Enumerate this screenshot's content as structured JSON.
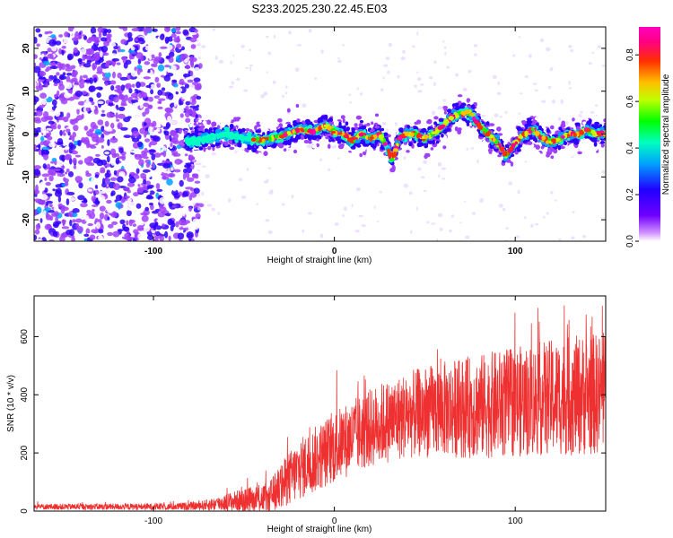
{
  "title": "S233.2025.230.22.45.E03",
  "chart_data": [
    {
      "type": "heatmap",
      "xlabel": "Height of straight line (km)",
      "ylabel": "Frequency (Hz)",
      "xlim": [
        -166,
        150
      ],
      "ylim": [
        -25,
        25
      ],
      "x_ticks": [
        -100,
        0,
        100
      ],
      "y_ticks": [
        -20,
        -10,
        0,
        10,
        20
      ],
      "colorbar": {
        "label": "Normalized spectral amplitude",
        "range": [
          0.0,
          0.92
        ],
        "ticks": [
          0.0,
          0.2,
          0.4,
          0.6,
          0.8
        ],
        "colors": [
          "#ffffff",
          "#a040ff",
          "#3000ff",
          "#00a0ff",
          "#00ffc0",
          "#00ff00",
          "#c0ff00",
          "#ffc000",
          "#ff3000",
          "#ff0080",
          "#ff00c0"
        ]
      },
      "ridge": {
        "x": [
          -80,
          -70,
          -60,
          -50,
          -40,
          -30,
          -20,
          -12,
          -5,
          0,
          5,
          10,
          15,
          20,
          25,
          28,
          32,
          36,
          40,
          45,
          50,
          55,
          60,
          65,
          70,
          75,
          80,
          85,
          90,
          95,
          100,
          105,
          110,
          115,
          120,
          125,
          130,
          135,
          140,
          145,
          150
        ],
        "y": [
          -1.5,
          -1,
          0,
          -1,
          -1.5,
          -0.5,
          1,
          0.5,
          2,
          0.5,
          0,
          -1.5,
          0,
          -1,
          0,
          -2,
          -6,
          -1,
          0,
          0,
          -1,
          0,
          2,
          4,
          5,
          5,
          2,
          0,
          -2,
          -5,
          -2,
          0,
          1,
          -1,
          -2,
          -1,
          0,
          0,
          1,
          0,
          0
        ],
        "peak_amplitude": 0.9
      }
    },
    {
      "type": "line",
      "xlabel": "Height of straight line (km)",
      "ylabel": "SNR (10 * v/v)",
      "xlim": [
        -166,
        150
      ],
      "ylim": [
        0,
        740
      ],
      "x_ticks": [
        -100,
        0,
        100
      ],
      "y_ticks": [
        0,
        200,
        400,
        600
      ],
      "color": "#ee3030",
      "envelope": {
        "x": [
          -166,
          -90,
          -75,
          -65,
          -55,
          -45,
          -35,
          -30,
          -25,
          -20,
          -10,
          0,
          10,
          25,
          40,
          60,
          80,
          100,
          120,
          140,
          150
        ],
        "mean": [
          15,
          15,
          18,
          25,
          35,
          40,
          50,
          80,
          110,
          140,
          180,
          220,
          255,
          300,
          330,
          350,
          360,
          375,
          390,
          400,
          405
        ],
        "spread": [
          10,
          12,
          15,
          25,
          35,
          45,
          60,
          80,
          95,
          105,
          115,
          125,
          130,
          140,
          150,
          165,
          180,
          190,
          200,
          210,
          210
        ]
      }
    }
  ]
}
